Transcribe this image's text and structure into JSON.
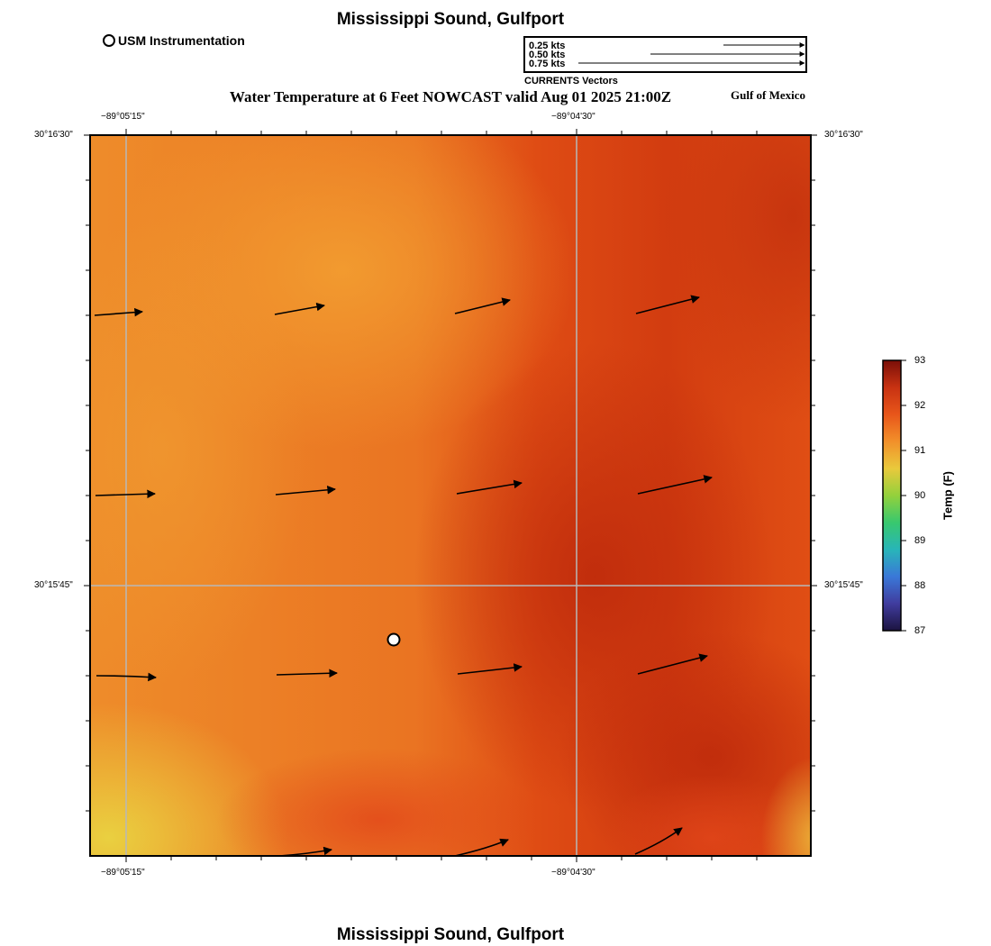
{
  "title": "Mississippi Sound, Gulfport",
  "footer_title": "Mississippi Sound, Gulfport",
  "subtitle": "Water Temperature at 6 Feet NOWCAST valid Aug 01 2025 21:00Z",
  "region_label": "Gulf of Mexico",
  "legend": {
    "station_label": "USM Instrumentation",
    "currents_title": "CURRENTS Vectors",
    "scale_labels": [
      "0.25 kts",
      "0.50 kts",
      "0.75 kts"
    ]
  },
  "axes": {
    "top_lon_labels": [
      "−89°05'15\"",
      "−89°04'30\""
    ],
    "bottom_lon_labels": [
      "−89°05'15\"",
      "−89°04'30\""
    ],
    "left_lat_labels": [
      "30°16'30\"",
      "30°15'45\""
    ],
    "right_lat_labels": [
      "30°16'30\"",
      "30°15'45\""
    ]
  },
  "colorbar": {
    "title": "Temp (F)",
    "ticks": [
      "93",
      "92",
      "91",
      "90",
      "89",
      "88",
      "87"
    ],
    "colors": [
      "#7a0f08",
      "#c83212",
      "#e8561a",
      "#f2902a",
      "#e9c93c",
      "#93d13c",
      "#38c86e",
      "#28b5b8",
      "#3a78d8",
      "#403c9e",
      "#1c1440"
    ]
  },
  "field_colors": {
    "warm_orange": "#f09a2e",
    "mid_orange": "#e8621e",
    "red_orange": "#e04a12",
    "dark_red": "#c5300e",
    "yellow": "#e9c43e"
  }
}
